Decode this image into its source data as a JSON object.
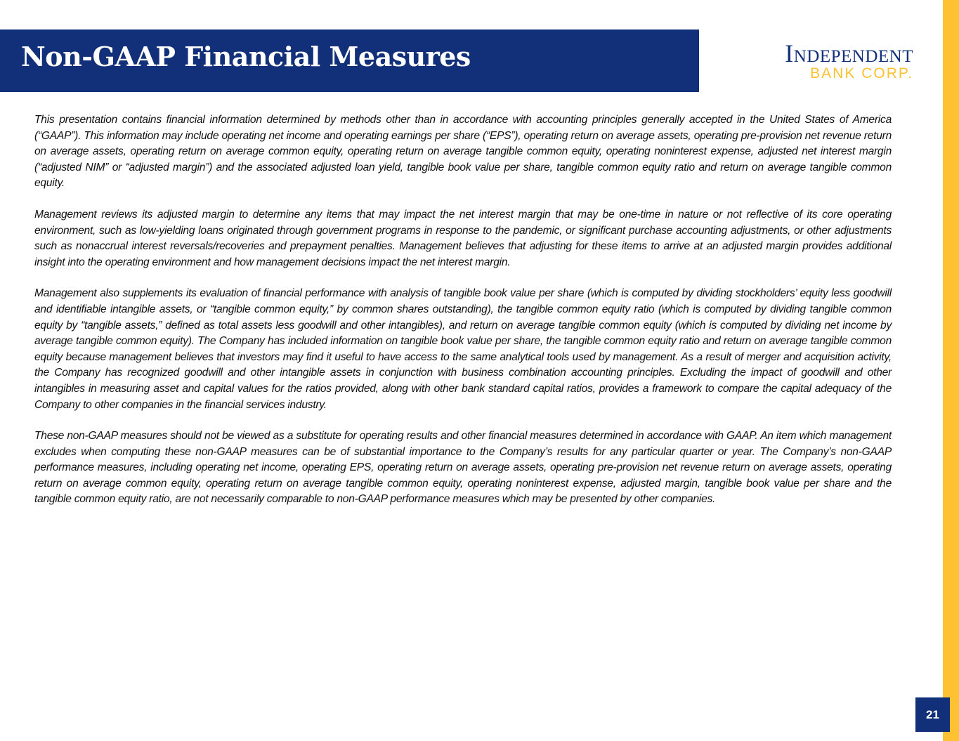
{
  "header": {
    "title": "Non-GAAP Financial Measures"
  },
  "logo": {
    "line1": "Independent",
    "line2": "BANK CORP."
  },
  "colors": {
    "navy": "#12307a",
    "gold": "#fdc131"
  },
  "body": {
    "paragraphs": [
      "This presentation contains financial information determined by methods other than in accordance with accounting principles generally accepted in the United States of America (“GAAP”).  This information may include operating net income and operating earnings per share (“EPS”), operating return on average assets, operating pre-provision net revenue return on average assets, operating return on average common equity, operating return on average tangible common equity, operating noninterest expense, adjusted net interest margin (“adjusted NIM” or “adjusted margin”) and the associated adjusted loan yield, tangible book value per share, tangible common equity ratio and return on average tangible common equity.",
      "Management reviews its adjusted margin to determine any items that may impact the net interest margin that may be one-time in nature or not reflective of its core operating environment, such as low-yielding loans originated through government programs in response to the pandemic, or significant purchase accounting adjustments, or other adjustments such as nonaccrual interest reversals/recoveries and prepayment penalties. Management believes that adjusting for these items to arrive at an adjusted margin provides additional insight into the operating environment and how management decisions impact the net interest margin.",
      "Management also supplements its evaluation of financial performance with analysis of tangible book value per share (which is computed by dividing stockholders’ equity less goodwill and identifiable intangible assets, or “tangible common equity,” by common shares outstanding), the tangible common equity ratio (which is computed by dividing tangible common equity by “tangible assets,” defined as total assets less goodwill and other intangibles), and return on average tangible common equity (which is computed by dividing net income by average tangible common equity).  The Company has included information on tangible book value per share, the tangible common equity ratio and return on average tangible common equity because management believes that investors may find it useful to have access to the same analytical tools used by management.  As a result of merger and acquisition activity, the Company has recognized goodwill and other intangible assets in conjunction with business combination accounting principles.  Excluding the impact of goodwill and other intangibles in measuring asset and capital values for the ratios provided, along with other bank standard capital ratios, provides a framework to compare the capital adequacy of the Company to other companies in the financial services industry.",
      "These non-GAAP measures should not be viewed as a substitute for operating results and other financial measures determined in accordance with GAAP.  An item which management excludes when computing these non-GAAP measures can be of substantial importance to the Company’s results for any particular quarter or year.  The Company’s non-GAAP performance measures, including operating net income, operating EPS, operating return on average assets, operating pre-provision net revenue return on average assets, operating return on average common equity, operating return on average tangible common equity, operating noninterest expense, adjusted margin, tangible book value per share and the tangible common equity ratio, are not necessarily comparable to non-GAAP performance measures which may be presented by other companies."
    ]
  },
  "footer": {
    "page_number": "21"
  }
}
